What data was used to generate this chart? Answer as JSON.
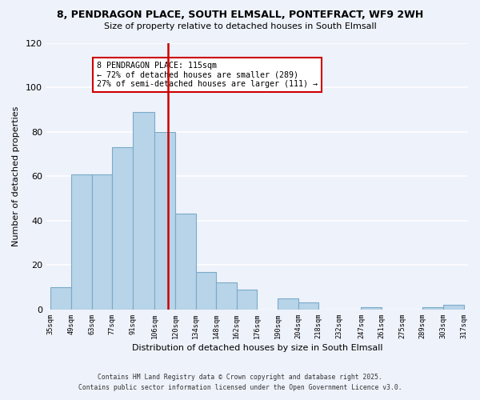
{
  "title_line1": "8, PENDRAGON PLACE, SOUTH ELMSALL, PONTEFRACT, WF9 2WH",
  "title_line2": "Size of property relative to detached houses in South Elmsall",
  "xlabel": "Distribution of detached houses by size in South Elmsall",
  "ylabel": "Number of detached properties",
  "bar_edges": [
    35,
    49,
    63,
    77,
    91,
    106,
    120,
    134,
    148,
    162,
    176,
    190,
    204,
    218,
    232,
    247,
    261,
    275,
    289,
    303,
    317
  ],
  "bar_heights": [
    10,
    61,
    61,
    73,
    89,
    80,
    43,
    17,
    12,
    9,
    0,
    5,
    3,
    0,
    0,
    1,
    0,
    0,
    1,
    2
  ],
  "bar_color": "#b8d4e8",
  "bar_edge_color": "#7aaac8",
  "vline_x": 115,
  "vline_color": "#cc0000",
  "annotation_title": "8 PENDRAGON PLACE: 115sqm",
  "annotation_line2": "← 72% of detached houses are smaller (289)",
  "annotation_line3": "27% of semi-detached houses are larger (111) →",
  "annotation_box_color": "#ffffff",
  "annotation_box_edge": "#cc0000",
  "ylim": [
    0,
    120
  ],
  "yticks": [
    0,
    20,
    40,
    60,
    80,
    100,
    120
  ],
  "tick_labels": [
    "35sqm",
    "49sqm",
    "63sqm",
    "77sqm",
    "91sqm",
    "106sqm",
    "120sqm",
    "134sqm",
    "148sqm",
    "162sqm",
    "176sqm",
    "190sqm",
    "204sqm",
    "218sqm",
    "232sqm",
    "247sqm",
    "261sqm",
    "275sqm",
    "289sqm",
    "303sqm",
    "317sqm"
  ],
  "footnote1": "Contains HM Land Registry data © Crown copyright and database right 2025.",
  "footnote2": "Contains public sector information licensed under the Open Government Licence v3.0.",
  "bg_color": "#eef2fb"
}
